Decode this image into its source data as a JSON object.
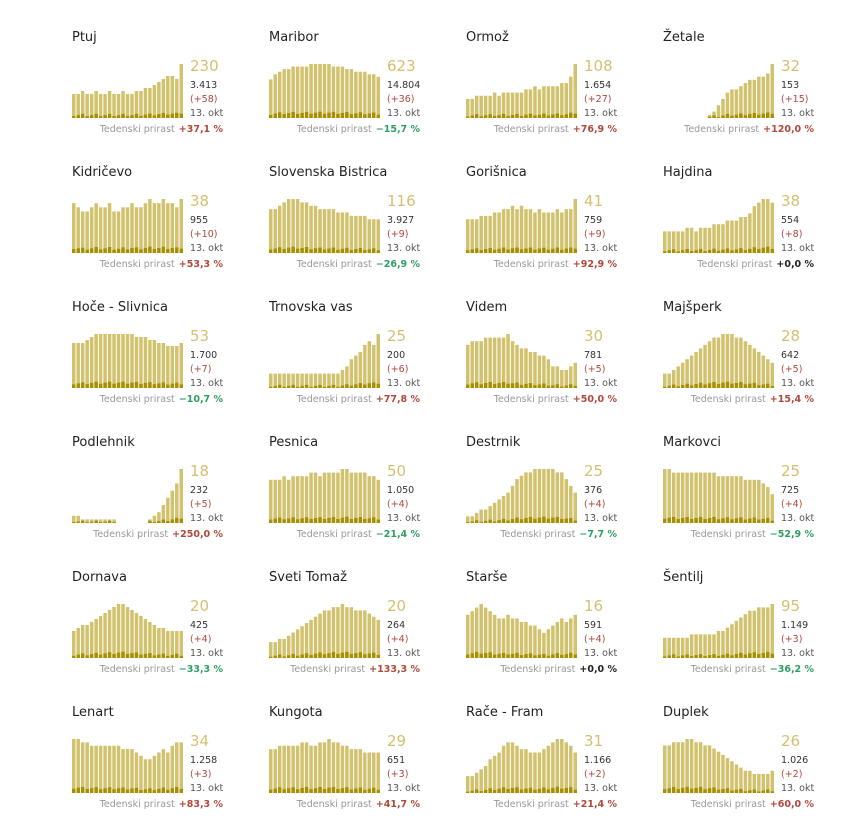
{
  "colors": {
    "total_bar": "#d2c26e",
    "local_bar": "#a68f00",
    "up": "#b0483b",
    "down": "#2f9e61",
    "flat": "#222222",
    "big_number": "#d4c071"
  },
  "growth_label": "Tedenski prirast",
  "date_label": "13. okt",
  "municipalities": [
    {
      "name": "Ptuj",
      "active": "230",
      "total": "3.413",
      "new": "(+58)",
      "date": "13. okt",
      "growth": "+37,1 %",
      "trend": "up",
      "series": [
        8,
        8,
        9,
        8,
        8,
        9,
        8,
        8,
        9,
        8,
        8,
        9,
        8,
        8,
        9,
        9,
        10,
        10,
        11,
        12,
        13,
        14,
        14,
        13,
        18
      ]
    },
    {
      "name": "Maribor",
      "active": "623",
      "total": "14.804",
      "new": "(+36)",
      "date": "13. okt",
      "growth": "−15,7 %",
      "trend": "down",
      "series": [
        15,
        17,
        18,
        19,
        19,
        20,
        20,
        20,
        20,
        21,
        21,
        21,
        21,
        21,
        20,
        20,
        20,
        19,
        19,
        18,
        18,
        18,
        17,
        17,
        16
      ]
    },
    {
      "name": "Ormož",
      "active": "108",
      "total": "1.654",
      "new": "(+27)",
      "date": "13. okt",
      "growth": "+76,9 %",
      "trend": "up",
      "series": [
        6,
        6,
        7,
        7,
        7,
        7,
        8,
        7,
        8,
        8,
        8,
        8,
        8,
        9,
        9,
        10,
        9,
        10,
        10,
        10,
        10,
        11,
        11,
        13,
        17
      ]
    },
    {
      "name": "Žetale",
      "active": "32",
      "total": "153",
      "new": "(+15)",
      "date": "13. okt",
      "growth": "+120,0 %",
      "trend": "up",
      "series": [
        0,
        0,
        0,
        0,
        0,
        0,
        0,
        0,
        0,
        0,
        1,
        2,
        4,
        6,
        8,
        9,
        9,
        10,
        11,
        12,
        12,
        13,
        13,
        14,
        17
      ]
    },
    {
      "name": "Kidričevo",
      "active": "38",
      "total": "955",
      "new": "(+10)",
      "date": "13. okt",
      "growth": "+53,3 %",
      "trend": "up",
      "series": [
        12,
        11,
        10,
        10,
        11,
        12,
        11,
        11,
        12,
        10,
        10,
        11,
        11,
        12,
        11,
        11,
        12,
        13,
        12,
        12,
        13,
        12,
        12,
        11,
        13
      ]
    },
    {
      "name": "Slovenska Bistrica",
      "active": "116",
      "total": "3.927",
      "new": "(+9)",
      "date": "13. okt",
      "growth": "−26,9 %",
      "trend": "down",
      "series": [
        13,
        13,
        14,
        15,
        16,
        16,
        16,
        15,
        15,
        14,
        14,
        13,
        13,
        13,
        13,
        12,
        12,
        12,
        11,
        11,
        11,
        11,
        10,
        10,
        10
      ]
    },
    {
      "name": "Gorišnica",
      "active": "41",
      "total": "759",
      "new": "(+9)",
      "date": "13. okt",
      "growth": "+92,9 %",
      "trend": "up",
      "series": [
        10,
        10,
        10,
        11,
        11,
        11,
        12,
        12,
        13,
        13,
        14,
        13,
        14,
        13,
        13,
        12,
        13,
        12,
        12,
        12,
        13,
        12,
        13,
        13,
        16
      ]
    },
    {
      "name": "Hajdina",
      "active": "38",
      "total": "554",
      "new": "(+8)",
      "date": "13. okt",
      "growth": "+0,0 %",
      "trend": "flat",
      "series": [
        6,
        6,
        6,
        6,
        6,
        7,
        7,
        6,
        7,
        7,
        7,
        8,
        8,
        8,
        9,
        9,
        9,
        10,
        10,
        11,
        13,
        14,
        15,
        15,
        14
      ]
    },
    {
      "name": "Hoče - Slivnica",
      "active": "53",
      "total": "1.700",
      "new": "(+7)",
      "date": "13. okt",
      "growth": "−10,7 %",
      "trend": "down",
      "series": [
        15,
        15,
        15,
        16,
        17,
        18,
        18,
        18,
        18,
        18,
        18,
        18,
        18,
        18,
        17,
        17,
        17,
        16,
        16,
        15,
        15,
        14,
        14,
        14,
        15
      ]
    },
    {
      "name": "Trnovska vas",
      "active": "25",
      "total": "200",
      "new": "(+6)",
      "date": "13. okt",
      "growth": "+77,8 %",
      "trend": "up",
      "series": [
        4,
        4,
        4,
        4,
        4,
        4,
        4,
        4,
        4,
        4,
        4,
        4,
        4,
        4,
        4,
        4,
        5,
        6,
        8,
        9,
        10,
        12,
        13,
        12,
        15
      ]
    },
    {
      "name": "Videm",
      "active": "30",
      "total": "781",
      "new": "(+5)",
      "date": "13. okt",
      "growth": "+50,0 %",
      "trend": "up",
      "series": [
        12,
        13,
        13,
        13,
        14,
        14,
        14,
        14,
        14,
        15,
        13,
        12,
        11,
        11,
        10,
        10,
        9,
        9,
        8,
        6,
        6,
        5,
        5,
        6,
        7
      ]
    },
    {
      "name": "Majšperk",
      "active": "28",
      "total": "642",
      "new": "(+5)",
      "date": "13. okt",
      "growth": "+15,4 %",
      "trend": "up",
      "series": [
        4,
        4,
        5,
        6,
        7,
        8,
        9,
        10,
        11,
        12,
        13,
        14,
        14,
        15,
        15,
        15,
        14,
        14,
        13,
        12,
        11,
        10,
        9,
        8,
        7
      ]
    },
    {
      "name": "Podlehnik",
      "active": "18",
      "total": "232",
      "new": "(+5)",
      "date": "13. okt",
      "growth": "+250,0 %",
      "trend": "up",
      "series": [
        2,
        2,
        1,
        1,
        1,
        1,
        1,
        1,
        1,
        1,
        0,
        0,
        0,
        0,
        0,
        0,
        0,
        1,
        2,
        3,
        5,
        7,
        9,
        11,
        15
      ]
    },
    {
      "name": "Pesnica",
      "active": "50",
      "total": "1.050",
      "new": "(+4)",
      "date": "13. okt",
      "growth": "−21,4 %",
      "trend": "down",
      "series": [
        12,
        12,
        12,
        13,
        12,
        13,
        13,
        13,
        13,
        14,
        14,
        13,
        14,
        14,
        14,
        14,
        15,
        15,
        14,
        14,
        14,
        14,
        13,
        13,
        12
      ]
    },
    {
      "name": "Destrnik",
      "active": "25",
      "total": "376",
      "new": "(+4)",
      "date": "13. okt",
      "growth": "−7,7 %",
      "trend": "down",
      "series": [
        2,
        2,
        3,
        4,
        4,
        5,
        6,
        7,
        8,
        9,
        11,
        13,
        14,
        15,
        15,
        16,
        16,
        16,
        16,
        16,
        15,
        15,
        13,
        11,
        9
      ]
    },
    {
      "name": "Markovci",
      "active": "25",
      "total": "725",
      "new": "(+4)",
      "date": "13. okt",
      "growth": "−52,9 %",
      "trend": "down",
      "series": [
        15,
        15,
        14,
        14,
        14,
        14,
        14,
        14,
        14,
        14,
        14,
        14,
        13,
        13,
        13,
        13,
        13,
        13,
        12,
        12,
        12,
        12,
        11,
        10,
        8
      ]
    },
    {
      "name": "Dornava",
      "active": "20",
      "total": "425",
      "new": "(+4)",
      "date": "13. okt",
      "growth": "−33,3 %",
      "trend": "down",
      "series": [
        9,
        10,
        11,
        11,
        12,
        13,
        14,
        15,
        16,
        17,
        18,
        18,
        17,
        16,
        15,
        14,
        13,
        12,
        11,
        10,
        10,
        9,
        9,
        9,
        9
      ]
    },
    {
      "name": "Sveti Tomaž",
      "active": "20",
      "total": "264",
      "new": "(+4)",
      "date": "13. okt",
      "growth": "+133,3 %",
      "trend": "up",
      "series": [
        5,
        5,
        6,
        6,
        7,
        8,
        9,
        10,
        11,
        12,
        13,
        14,
        15,
        15,
        16,
        16,
        17,
        16,
        16,
        15,
        15,
        15,
        14,
        13,
        12
      ]
    },
    {
      "name": "Starše",
      "active": "16",
      "total": "591",
      "new": "(+4)",
      "date": "13. okt",
      "growth": "+0,0 %",
      "trend": "flat",
      "series": [
        12,
        13,
        14,
        15,
        14,
        13,
        12,
        11,
        11,
        12,
        11,
        11,
        10,
        10,
        9,
        9,
        8,
        7,
        8,
        9,
        10,
        11,
        10,
        11,
        12
      ]
    },
    {
      "name": "Šentilj",
      "active": "95",
      "total": "1.149",
      "new": "(+3)",
      "date": "13. okt",
      "growth": "−36,2 %",
      "trend": "down",
      "series": [
        6,
        6,
        6,
        6,
        6,
        6,
        7,
        7,
        7,
        7,
        7,
        7,
        8,
        8,
        9,
        10,
        11,
        12,
        13,
        14,
        14,
        15,
        15,
        15,
        16
      ]
    },
    {
      "name": "Lenart",
      "active": "34",
      "total": "1.258",
      "new": "(+3)",
      "date": "13. okt",
      "growth": "+83,3 %",
      "trend": "up",
      "series": [
        16,
        16,
        15,
        15,
        14,
        14,
        14,
        14,
        14,
        14,
        14,
        13,
        13,
        13,
        12,
        11,
        10,
        10,
        11,
        12,
        13,
        12,
        14,
        15,
        15
      ]
    },
    {
      "name": "Kungota",
      "active": "29",
      "total": "651",
      "new": "(+3)",
      "date": "13. okt",
      "growth": "+41,7 %",
      "trend": "up",
      "series": [
        13,
        13,
        14,
        14,
        14,
        14,
        14,
        15,
        15,
        14,
        14,
        15,
        15,
        16,
        15,
        15,
        14,
        14,
        13,
        13,
        13,
        12,
        12,
        12,
        12
      ]
    },
    {
      "name": "Rače - Fram",
      "active": "31",
      "total": "1.166",
      "new": "(+2)",
      "date": "13. okt",
      "growth": "+21,4 %",
      "trend": "up",
      "series": [
        5,
        5,
        6,
        7,
        8,
        10,
        11,
        12,
        14,
        15,
        15,
        14,
        13,
        13,
        12,
        12,
        12,
        13,
        14,
        15,
        16,
        16,
        15,
        14,
        12
      ]
    },
    {
      "name": "Duplek",
      "active": "26",
      "total": "1.026",
      "new": "(+2)",
      "date": "13. okt",
      "growth": "+60,0 %",
      "trend": "up",
      "series": [
        15,
        15,
        16,
        16,
        16,
        17,
        17,
        16,
        16,
        15,
        15,
        14,
        13,
        12,
        11,
        10,
        9,
        8,
        7,
        7,
        6,
        6,
        6,
        6,
        7
      ]
    }
  ]
}
